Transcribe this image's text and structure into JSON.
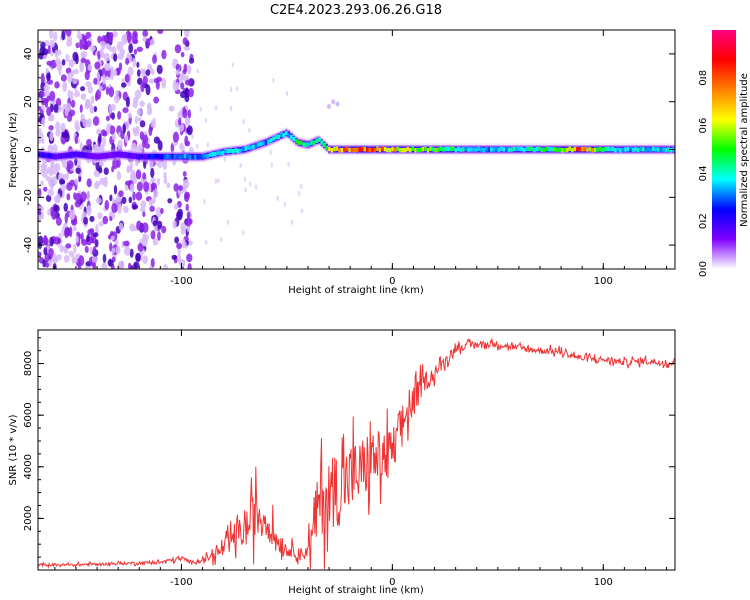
{
  "title": "C2E4.2023.293.06.26.G18",
  "colors": {
    "line": "#ef3434",
    "axes": "#000000",
    "spectro_light": "#d7b9f7",
    "spectro_mid": "#8b22e6",
    "spectro_dark": "#4200b8"
  },
  "colorbar": {
    "label": "Normalized spectral amplitude",
    "ticks": [
      "0.0",
      "0.2",
      "0.4",
      "0.6",
      "0.8"
    ],
    "tick_values": [
      0.0,
      0.2,
      0.4,
      0.6,
      0.8
    ],
    "range": [
      0,
      1
    ],
    "colormap": [
      "#ffffff",
      "#8000ff",
      "#0000ff",
      "#00ffff",
      "#00ff00",
      "#ffff00",
      "#ff8000",
      "#ff0000",
      "#ff0080"
    ]
  },
  "chart_data": [
    {
      "type": "heatmap",
      "xlabel": "Height of straight line (km)",
      "ylabel": "Frequency (Hz)",
      "xlim": [
        -168,
        134
      ],
      "ylim": [
        -50,
        50
      ],
      "xticks": [
        -100,
        0,
        100
      ],
      "xtick_labels": [
        "-100",
        "0",
        "100"
      ],
      "yticks": [
        -40,
        -20,
        0,
        20,
        40
      ],
      "ytick_labels": [
        "-40",
        "-20",
        "0",
        "20",
        "40"
      ],
      "ridge": {
        "x": [
          -168,
          -160,
          -150,
          -140,
          -130,
          -120,
          -110,
          -100,
          -90,
          -80,
          -70,
          -60,
          -55,
          -50,
          -45,
          -40,
          -35,
          -30,
          -20,
          -10,
          0,
          20,
          40,
          60,
          80,
          90,
          100,
          110,
          120,
          134
        ],
        "y": [
          -2,
          -3,
          -2,
          -3,
          -2,
          -3,
          -3,
          -3,
          -3,
          -1,
          0,
          3,
          5,
          7,
          3,
          2,
          4,
          0,
          0,
          0,
          0,
          0,
          0,
          0,
          0,
          0,
          0,
          0,
          0,
          0
        ],
        "amplitude": [
          0.25,
          0.2,
          0.2,
          0.15,
          0.15,
          0.2,
          0.3,
          0.35,
          0.35,
          0.4,
          0.4,
          0.35,
          0.45,
          0.4,
          0.5,
          0.45,
          0.45,
          0.7,
          0.85,
          0.9,
          0.75,
          0.55,
          0.35,
          0.4,
          0.55,
          0.9,
          0.5,
          0.4,
          0.4,
          0.4
        ]
      },
      "noise_region_x": [
        -168,
        -95
      ],
      "max_amplitude": 1
    },
    {
      "type": "line",
      "xlabel": "Height of straight line (km)",
      "ylabel": "SNR (10 * v/v)",
      "xlim": [
        -168,
        134
      ],
      "ylim": [
        0,
        9300
      ],
      "xticks": [
        -100,
        0,
        100
      ],
      "xtick_labels": [
        "-100",
        "0",
        "100"
      ],
      "yticks": [
        2000,
        4000,
        6000,
        8000
      ],
      "ytick_labels": [
        "2000",
        "4000",
        "6000",
        "8000"
      ],
      "series": [
        {
          "x": [
            -168,
            -150,
            -130,
            -110,
            -100,
            -95,
            -90,
            -85,
            -80,
            -75,
            -70,
            -65,
            -60,
            -55,
            -50,
            -45,
            -42,
            -38,
            -35,
            -30,
            -25,
            -20,
            -15,
            -10,
            -5,
            0,
            5,
            10,
            15,
            20,
            25,
            30,
            40,
            50,
            60,
            70,
            80,
            90,
            100,
            110,
            120,
            134
          ],
          "y": [
            200,
            200,
            250,
            300,
            450,
            300,
            400,
            550,
            800,
            1300,
            1500,
            2200,
            2000,
            1200,
            800,
            700,
            600,
            1200,
            2600,
            3000,
            3200,
            3600,
            3800,
            4300,
            4300,
            4500,
            5800,
            6500,
            7300,
            7600,
            8100,
            8600,
            8750,
            8750,
            8600,
            8500,
            8450,
            8200,
            8150,
            8050,
            8100,
            8000
          ],
          "spread": [
            100,
            100,
            100,
            120,
            200,
            100,
            150,
            400,
            600,
            1000,
            1300,
            2000,
            1500,
            900,
            500,
            500,
            400,
            1500,
            3000,
            2800,
            3000,
            2800,
            2600,
            2400,
            2200,
            2000,
            1500,
            1200,
            800,
            500,
            400,
            300,
            250,
            250,
            250,
            250,
            250,
            250,
            250,
            250,
            250,
            250
          ]
        }
      ]
    }
  ]
}
